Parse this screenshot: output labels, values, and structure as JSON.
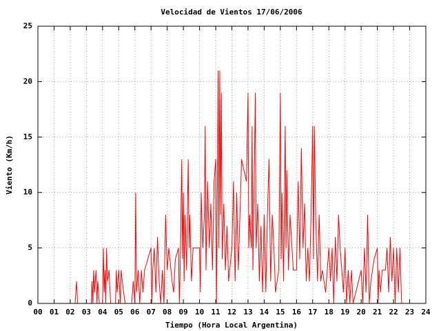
{
  "chart_data": {
    "type": "line",
    "title": "Velocidad de Vientos 17/06/2006",
    "x_label": "Tiempo (Hora Local Argentina)",
    "y_label": "Viento (Km/h)",
    "color": "#ff0000",
    "grid": true,
    "xlim": [
      0,
      24
    ],
    "ylim": [
      0,
      25
    ],
    "xticks": [
      {
        "value": 0,
        "label": "00"
      },
      {
        "value": 1,
        "label": "01"
      },
      {
        "value": 2,
        "label": "02"
      },
      {
        "value": 3,
        "label": "03"
      },
      {
        "value": 4,
        "label": "04"
      },
      {
        "value": 5,
        "label": "05"
      },
      {
        "value": 6,
        "label": "06"
      },
      {
        "value": 7,
        "label": "07"
      },
      {
        "value": 8,
        "label": "08"
      },
      {
        "value": 9,
        "label": "09"
      },
      10,
      11,
      12,
      13,
      14,
      15,
      16,
      17,
      18,
      19,
      20,
      21,
      22,
      23,
      24
    ],
    "yticks": [
      0,
      5,
      10,
      15,
      20,
      25
    ],
    "x": [
      2.3,
      2.4,
      2.45,
      3.3,
      3.35,
      3.4,
      3.45,
      3.5,
      3.6,
      3.65,
      3.7,
      3.8,
      4.0,
      4.05,
      4.1,
      4.15,
      4.2,
      4.25,
      4.3,
      4.4,
      4.5,
      4.8,
      4.85,
      4.9,
      5.0,
      5.1,
      5.15,
      5.3,
      5.4,
      5.8,
      5.9,
      6.0,
      6.05,
      6.1,
      6.2,
      6.3,
      6.4,
      6.5,
      6.6,
      7.0,
      7.05,
      7.1,
      7.2,
      7.3,
      7.4,
      7.5,
      7.6,
      7.7,
      7.8,
      7.9,
      8.0,
      8.1,
      8.3,
      8.4,
      8.5,
      8.7,
      8.75,
      8.8,
      8.9,
      8.95,
      9.0,
      9.05,
      9.1,
      9.2,
      9.3,
      9.35,
      9.4,
      9.5,
      9.6,
      9.8,
      10.0,
      10.05,
      10.1,
      10.2,
      10.3,
      10.35,
      10.4,
      10.5,
      10.6,
      10.7,
      10.8,
      10.9,
      11.0,
      11.05,
      11.1,
      11.15,
      11.2,
      11.25,
      11.3,
      11.35,
      11.4,
      11.5,
      11.6,
      11.7,
      11.8,
      12.0,
      12.1,
      12.2,
      12.3,
      12.4,
      12.5,
      12.6,
      12.9,
      13.0,
      13.05,
      13.1,
      13.2,
      13.25,
      13.3,
      13.4,
      13.45,
      13.5,
      13.6,
      13.7,
      13.8,
      13.9,
      14.0,
      14.1,
      14.2,
      14.3,
      14.4,
      14.5,
      14.6,
      14.7,
      14.9,
      15.0,
      15.05,
      15.1,
      15.2,
      15.3,
      15.35,
      15.4,
      15.5,
      15.6,
      15.8,
      16.0,
      16.1,
      16.2,
      16.3,
      16.4,
      16.5,
      16.6,
      16.7,
      16.8,
      16.9,
      17.0,
      17.05,
      17.1,
      17.2,
      17.3,
      17.4,
      17.5,
      17.6,
      17.8,
      18.0,
      18.1,
      18.2,
      18.3,
      18.4,
      18.5,
      18.6,
      18.7,
      18.8,
      18.9,
      19.0,
      19.1,
      19.2,
      19.3,
      19.4,
      19.5,
      20.0,
      20.1,
      20.2,
      20.3,
      20.4,
      20.5,
      20.6,
      20.8,
      21.0,
      21.05,
      21.1,
      21.2,
      21.3,
      21.5,
      21.6,
      21.7,
      21.8,
      21.9,
      22.0,
      22.1,
      22.2,
      22.3,
      22.4,
      22.5
    ],
    "values": [
      0,
      2,
      0,
      0,
      2,
      0,
      3,
      1,
      3,
      0,
      2,
      0,
      0,
      5,
      1,
      3,
      0,
      5,
      2,
      3,
      0,
      0,
      3,
      1,
      3,
      0,
      3,
      1,
      0,
      0,
      2,
      0,
      10,
      1,
      3,
      0,
      3,
      1,
      3,
      5,
      0,
      3,
      5,
      1,
      6,
      2,
      0,
      3,
      0,
      8,
      3,
      5,
      2,
      1,
      4,
      5,
      0,
      3,
      13,
      4,
      10,
      2,
      8,
      3,
      13,
      5,
      8,
      2,
      5,
      5,
      5,
      1,
      10,
      5,
      8,
      16,
      3,
      11,
      5,
      9,
      3,
      11,
      13,
      0,
      10,
      21,
      5,
      21,
      8,
      19,
      4,
      9,
      3,
      7,
      2,
      5,
      11,
      2,
      10,
      3,
      8,
      13,
      11,
      19,
      5,
      8,
      5,
      16,
      3,
      13,
      19,
      5,
      9,
      2,
      7,
      1,
      8,
      1,
      8,
      13,
      2,
      8,
      5,
      1,
      3,
      19,
      4,
      10,
      2,
      16,
      5,
      12,
      3,
      8,
      3,
      3,
      11,
      4,
      14,
      5,
      9,
      2,
      5,
      2,
      8,
      16,
      4,
      16,
      7,
      2,
      8,
      2,
      3,
      1,
      5,
      2,
      5,
      0,
      6,
      2,
      8,
      5,
      3,
      1,
      5,
      0,
      3,
      0,
      3,
      0,
      3,
      0,
      5,
      1,
      8,
      0,
      2,
      4,
      5,
      0,
      3,
      1,
      3,
      3,
      5,
      1,
      6,
      2,
      5,
      0,
      5,
      1,
      5,
      0
    ]
  }
}
